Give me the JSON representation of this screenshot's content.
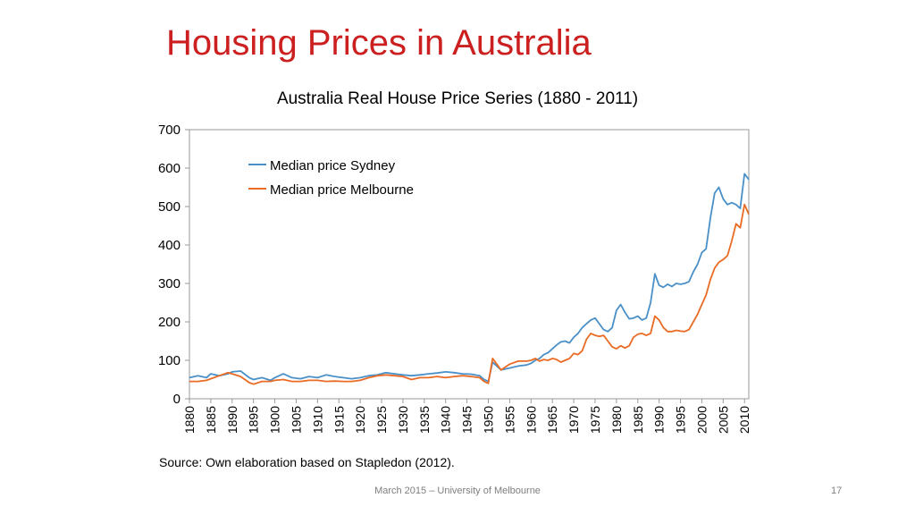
{
  "slide": {
    "title": "Housing Prices in Australia",
    "source": "Source: Own elaboration based on Stapledon (2012).",
    "footer": "March 2015 – University of Melbourne",
    "page_number": "17"
  },
  "chart_data": {
    "type": "line",
    "title": "Australia Real House Price Series (1880 - 2011)",
    "xlabel": "",
    "ylabel": "",
    "xlim": [
      1880,
      2011
    ],
    "ylim": [
      0,
      700
    ],
    "yticks": [
      0,
      100,
      200,
      300,
      400,
      500,
      600,
      700
    ],
    "xticks": [
      1880,
      1885,
      1890,
      1895,
      1900,
      1905,
      1910,
      1915,
      1920,
      1925,
      1930,
      1935,
      1940,
      1945,
      1950,
      1955,
      1960,
      1965,
      1970,
      1975,
      1980,
      1985,
      1990,
      1995,
      2000,
      2005,
      2010
    ],
    "grid": false,
    "legend": "top-left",
    "series": [
      {
        "name": "Median price Sydney",
        "color": "#4a90c8",
        "x": [
          1880,
          1882,
          1884,
          1885,
          1887,
          1889,
          1890,
          1892,
          1894,
          1895,
          1897,
          1899,
          1900,
          1902,
          1904,
          1906,
          1908,
          1910,
          1912,
          1914,
          1916,
          1918,
          1920,
          1922,
          1924,
          1926,
          1928,
          1930,
          1932,
          1934,
          1936,
          1938,
          1940,
          1942,
          1944,
          1946,
          1948,
          1949,
          1950,
          1951,
          1953,
          1955,
          1957,
          1959,
          1960,
          1961,
          1962,
          1963,
          1964,
          1965,
          1966,
          1967,
          1968,
          1969,
          1970,
          1971,
          1972,
          1973,
          1974,
          1975,
          1976,
          1977,
          1978,
          1979,
          1980,
          1981,
          1982,
          1983,
          1984,
          1985,
          1986,
          1987,
          1988,
          1989,
          1990,
          1991,
          1992,
          1993,
          1994,
          1995,
          1996,
          1997,
          1998,
          1999,
          2000,
          2001,
          2002,
          2003,
          2004,
          2005,
          2006,
          2007,
          2008,
          2009,
          2010,
          2011
        ],
        "values": [
          55,
          60,
          55,
          65,
          60,
          65,
          70,
          72,
          55,
          50,
          55,
          48,
          55,
          65,
          55,
          52,
          58,
          55,
          62,
          58,
          55,
          52,
          55,
          60,
          62,
          68,
          65,
          62,
          60,
          62,
          65,
          67,
          70,
          68,
          65,
          64,
          60,
          50,
          45,
          95,
          75,
          80,
          85,
          88,
          92,
          100,
          105,
          115,
          120,
          130,
          140,
          148,
          150,
          145,
          160,
          170,
          185,
          195,
          205,
          210,
          195,
          180,
          175,
          185,
          230,
          245,
          225,
          208,
          210,
          215,
          205,
          210,
          250,
          325,
          295,
          290,
          298,
          292,
          300,
          298,
          300,
          305,
          330,
          350,
          380,
          390,
          470,
          535,
          550,
          520,
          505,
          510,
          505,
          495,
          585,
          570
        ]
      },
      {
        "name": "Median price Melbourne",
        "color": "#e96b24",
        "x": [
          1880,
          1882,
          1884,
          1885,
          1887,
          1889,
          1890,
          1892,
          1894,
          1895,
          1897,
          1899,
          1900,
          1902,
          1904,
          1906,
          1908,
          1910,
          1912,
          1914,
          1916,
          1918,
          1920,
          1922,
          1924,
          1926,
          1928,
          1930,
          1932,
          1934,
          1936,
          1938,
          1940,
          1942,
          1944,
          1946,
          1948,
          1949,
          1950,
          1951,
          1953,
          1955,
          1957,
          1959,
          1960,
          1961,
          1962,
          1963,
          1964,
          1965,
          1966,
          1967,
          1968,
          1969,
          1970,
          1971,
          1972,
          1973,
          1974,
          1975,
          1976,
          1977,
          1978,
          1979,
          1980,
          1981,
          1982,
          1983,
          1984,
          1985,
          1986,
          1987,
          1988,
          1989,
          1990,
          1991,
          1992,
          1993,
          1994,
          1995,
          1996,
          1997,
          1998,
          1999,
          2000,
          2001,
          2002,
          2003,
          2004,
          2005,
          2006,
          2007,
          2008,
          2009,
          2010,
          2011
        ],
        "values": [
          45,
          45,
          48,
          52,
          60,
          68,
          65,
          58,
          42,
          38,
          45,
          45,
          48,
          50,
          45,
          45,
          48,
          48,
          45,
          46,
          45,
          45,
          48,
          55,
          60,
          62,
          60,
          58,
          50,
          55,
          55,
          58,
          55,
          58,
          60,
          58,
          55,
          45,
          40,
          105,
          75,
          90,
          98,
          98,
          100,
          105,
          98,
          102,
          100,
          105,
          102,
          95,
          100,
          105,
          118,
          115,
          125,
          155,
          170,
          165,
          162,
          165,
          150,
          135,
          130,
          138,
          132,
          138,
          160,
          168,
          170,
          165,
          170,
          215,
          205,
          185,
          175,
          175,
          178,
          176,
          175,
          180,
          200,
          220,
          245,
          270,
          310,
          340,
          355,
          362,
          372,
          410,
          455,
          445,
          505,
          480
        ]
      }
    ]
  }
}
